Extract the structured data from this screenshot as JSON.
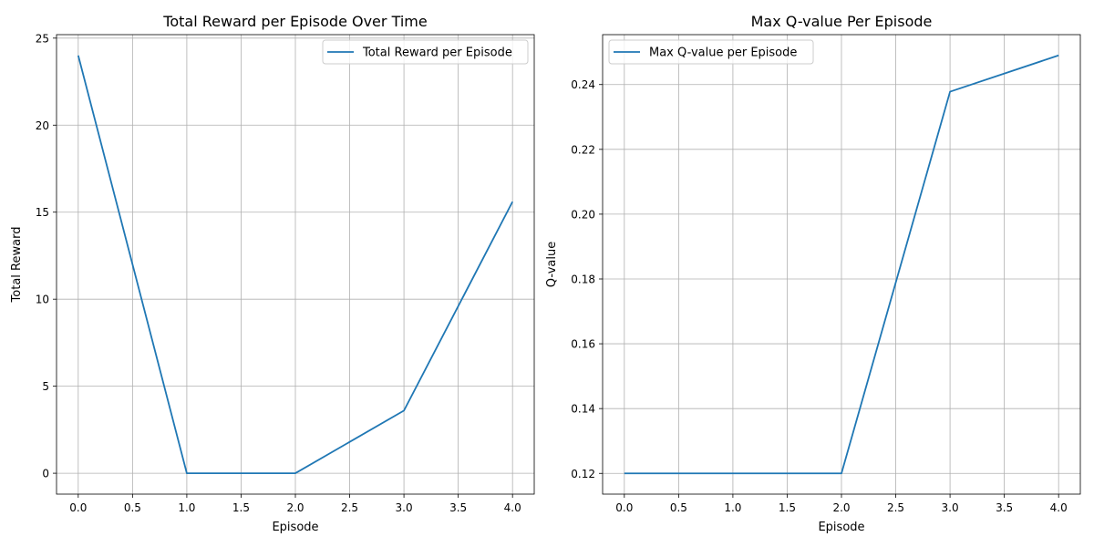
{
  "chart_data": [
    {
      "type": "line",
      "title": "Total Reward per Episode Over Time",
      "xlabel": "Episode",
      "ylabel": "Total Reward",
      "xlim": [
        -0.2,
        4.2
      ],
      "ylim": [
        -1.2,
        25.2
      ],
      "xticks": [
        0.0,
        0.5,
        1.0,
        1.5,
        2.0,
        2.5,
        3.0,
        3.5,
        4.0
      ],
      "xtick_labels": [
        "0.0",
        "0.5",
        "1.0",
        "1.5",
        "2.0",
        "2.5",
        "3.0",
        "3.5",
        "4.0"
      ],
      "yticks": [
        0,
        5,
        10,
        15,
        20,
        25
      ],
      "ytick_labels": [
        "0",
        "5",
        "10",
        "15",
        "20",
        "25"
      ],
      "grid": true,
      "legend_position": "upper right",
      "series": [
        {
          "name": "Total Reward per Episode",
          "color": "#1f77b4",
          "x": [
            0,
            1,
            2,
            3,
            4
          ],
          "y": [
            24.0,
            0.0,
            0.0,
            3.6,
            15.6
          ]
        }
      ]
    },
    {
      "type": "line",
      "title": "Max Q-value Per Episode",
      "xlabel": "Episode",
      "ylabel": "Q-value",
      "xlim": [
        -0.2,
        4.2
      ],
      "ylim": [
        0.1136,
        0.2554
      ],
      "xticks": [
        0.0,
        0.5,
        1.0,
        1.5,
        2.0,
        2.5,
        3.0,
        3.5,
        4.0
      ],
      "xtick_labels": [
        "0.0",
        "0.5",
        "1.0",
        "1.5",
        "2.0",
        "2.5",
        "3.0",
        "3.5",
        "4.0"
      ],
      "yticks": [
        0.12,
        0.14,
        0.16,
        0.18,
        0.2,
        0.22,
        0.24
      ],
      "ytick_labels": [
        "0.12",
        "0.14",
        "0.16",
        "0.18",
        "0.20",
        "0.22",
        "0.24"
      ],
      "grid": true,
      "legend_position": "upper left",
      "series": [
        {
          "name": "Max Q-value per Episode",
          "color": "#1f77b4",
          "x": [
            0,
            1,
            2,
            3,
            4
          ],
          "y": [
            0.12,
            0.12,
            0.12,
            0.2378,
            0.249
          ]
        }
      ]
    }
  ]
}
